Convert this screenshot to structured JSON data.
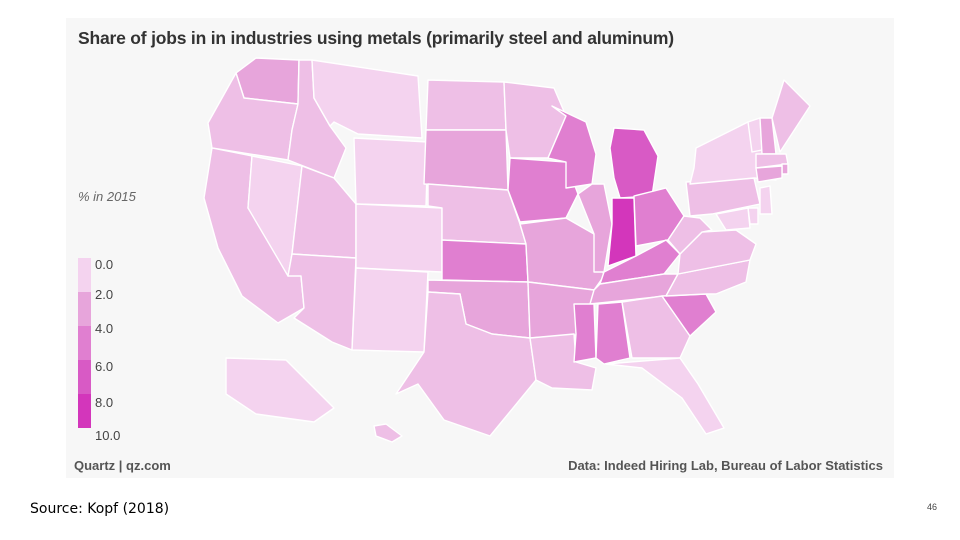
{
  "figure": {
    "title": "Share of jobs in in industries using metals (primarily steel and aluminum)",
    "legend_title": "% in 2015",
    "legend_labels": [
      "0.0",
      "2.0",
      "4.0",
      "6.0",
      "8.0",
      "10.0"
    ],
    "legend_colors": [
      "#f4d3ef",
      "#eebfe6",
      "#e7a5db",
      "#e07fd0",
      "#d85ac5",
      "#d336bb"
    ],
    "credit_left": "Quartz | qz.com",
    "credit_right": "Data: Indeed Hiring Lab, Bureau of Labor Statistics",
    "background": "#f7f7f7",
    "state_border": "#ffffff"
  },
  "map": {
    "scale_min": 0,
    "scale_max": 10,
    "unit": "% of jobs",
    "year": 2015,
    "state_share_bins": {
      "WA": 5,
      "OR": 3,
      "CA": 3,
      "NV": 1,
      "ID": 3,
      "MT": 1,
      "WY": 1,
      "UT": 3,
      "AZ": 3,
      "CO": 1,
      "NM": 1,
      "ND": 3,
      "SD": 5,
      "NE": 2,
      "KS": 6,
      "OK": 5,
      "TX": 3,
      "MN": 3,
      "IA": 6,
      "MO": 4,
      "AR": 4,
      "LA": 3,
      "WI": 6,
      "IL": 5,
      "MI": 9,
      "IN": 10,
      "OH": 7,
      "KY": 6,
      "TN": 5,
      "MS": 7,
      "AL": 7,
      "GA": 3,
      "FL": 1,
      "SC": 7,
      "NC": 3,
      "VA": 3,
      "WV": 3,
      "PA": 3,
      "NY": 1,
      "VT": 1,
      "NH": 5,
      "ME": 3,
      "MA": 3,
      "RI": 5,
      "CT": 5,
      "NJ": 1,
      "DE": 1,
      "MD": 1,
      "AK": 1,
      "HI": 3
    }
  },
  "footer": {
    "source": "Source:  Kopf (2018)",
    "page_number": "46"
  }
}
